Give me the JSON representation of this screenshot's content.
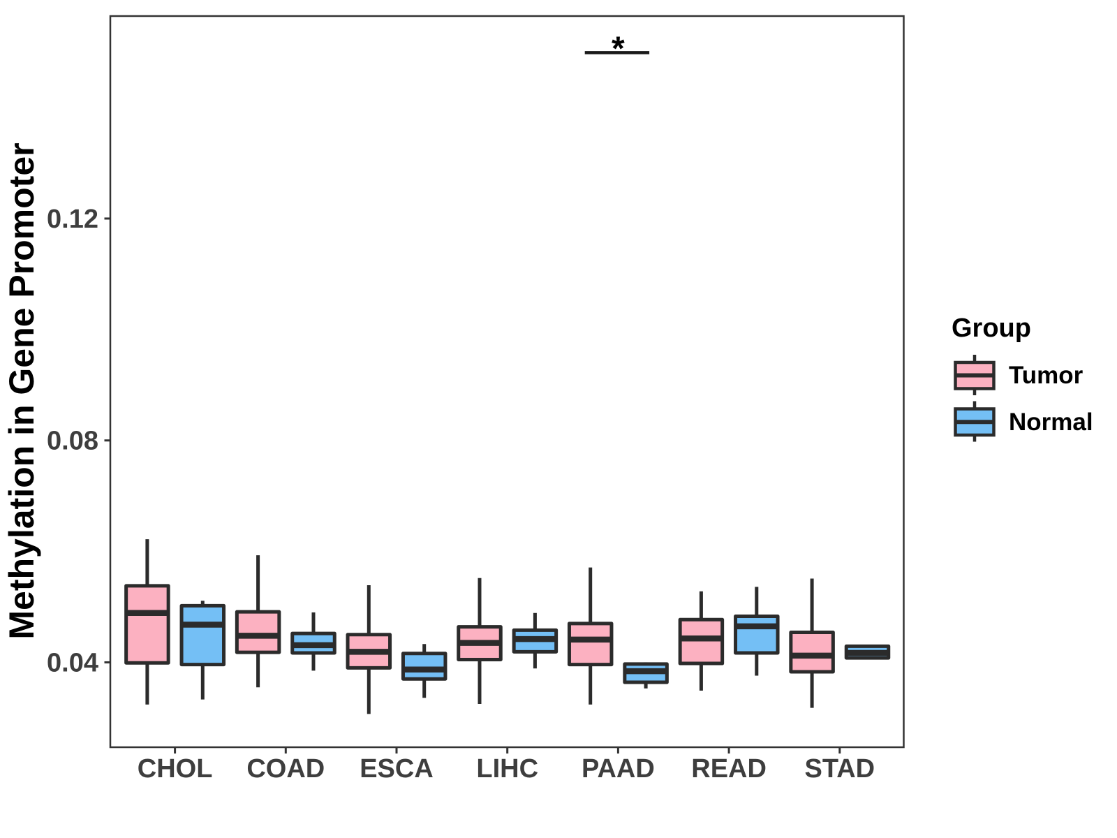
{
  "figure": {
    "background": "#FFFFFF",
    "panel_border_color": "#333333",
    "box_stroke_color": "#2B2B2B",
    "axis_text_color": "#3E3E3E"
  },
  "chart_data": {
    "type": "boxplot",
    "title": "",
    "xlabel": "",
    "ylabel": "Methylation in Gene Promoter",
    "ylim": [
      0.0247,
      0.1565
    ],
    "yticks": [
      0.04,
      0.08,
      0.12
    ],
    "ytick_labels": [
      "0.04",
      "0.08",
      "0.12"
    ],
    "categories": [
      "CHOL",
      "COAD",
      "ESCA",
      "LIHC",
      "PAAD",
      "READ",
      "STAD"
    ],
    "grid": false,
    "legend": {
      "title": "Group",
      "position": "right"
    },
    "series": [
      {
        "name": "Tumor",
        "color": "#FCB1C1",
        "boxes": [
          {
            "category": "CHOL",
            "whisker_low": 0.0324,
            "q1": 0.0399,
            "median": 0.0489,
            "q3": 0.0538,
            "whisker_high": 0.0622
          },
          {
            "category": "COAD",
            "whisker_low": 0.0355,
            "q1": 0.0418,
            "median": 0.0448,
            "q3": 0.0491,
            "whisker_high": 0.0593
          },
          {
            "category": "ESCA",
            "whisker_low": 0.0307,
            "q1": 0.039,
            "median": 0.0419,
            "q3": 0.045,
            "whisker_high": 0.0539
          },
          {
            "category": "LIHC",
            "whisker_low": 0.0325,
            "q1": 0.0405,
            "median": 0.0435,
            "q3": 0.0464,
            "whisker_high": 0.0552
          },
          {
            "category": "PAAD",
            "whisker_low": 0.0324,
            "q1": 0.0396,
            "median": 0.0441,
            "q3": 0.047,
            "whisker_high": 0.0571
          },
          {
            "category": "READ",
            "whisker_low": 0.0349,
            "q1": 0.0398,
            "median": 0.0443,
            "q3": 0.0477,
            "whisker_high": 0.0528
          },
          {
            "category": "STAD",
            "whisker_low": 0.0318,
            "q1": 0.0383,
            "median": 0.0412,
            "q3": 0.0454,
            "whisker_high": 0.0551
          }
        ]
      },
      {
        "name": "Normal",
        "color": "#74BFF5",
        "boxes": [
          {
            "category": "CHOL",
            "whisker_low": 0.0333,
            "q1": 0.0396,
            "median": 0.0468,
            "q3": 0.0502,
            "whisker_high": 0.0511
          },
          {
            "category": "COAD",
            "whisker_low": 0.0385,
            "q1": 0.0417,
            "median": 0.0431,
            "q3": 0.0452,
            "whisker_high": 0.049
          },
          {
            "category": "ESCA",
            "whisker_low": 0.0336,
            "q1": 0.037,
            "median": 0.0387,
            "q3": 0.0416,
            "whisker_high": 0.0433
          },
          {
            "category": "LIHC",
            "whisker_low": 0.0389,
            "q1": 0.0419,
            "median": 0.0442,
            "q3": 0.0458,
            "whisker_high": 0.0489
          },
          {
            "category": "PAAD",
            "whisker_low": 0.0353,
            "q1": 0.0364,
            "median": 0.0384,
            "q3": 0.0397,
            "whisker_high": 0.04
          },
          {
            "category": "READ",
            "whisker_low": 0.0376,
            "q1": 0.0417,
            "median": 0.0465,
            "q3": 0.0483,
            "whisker_high": 0.0536
          },
          {
            "category": "STAD",
            "whisker_low": 0.0405,
            "q1": 0.0408,
            "median": 0.0417,
            "q3": 0.0429,
            "whisker_high": 0.0431
          }
        ]
      }
    ],
    "annotation": {
      "label": "*",
      "category": "PAAD",
      "line_value": 0.1499
    }
  }
}
